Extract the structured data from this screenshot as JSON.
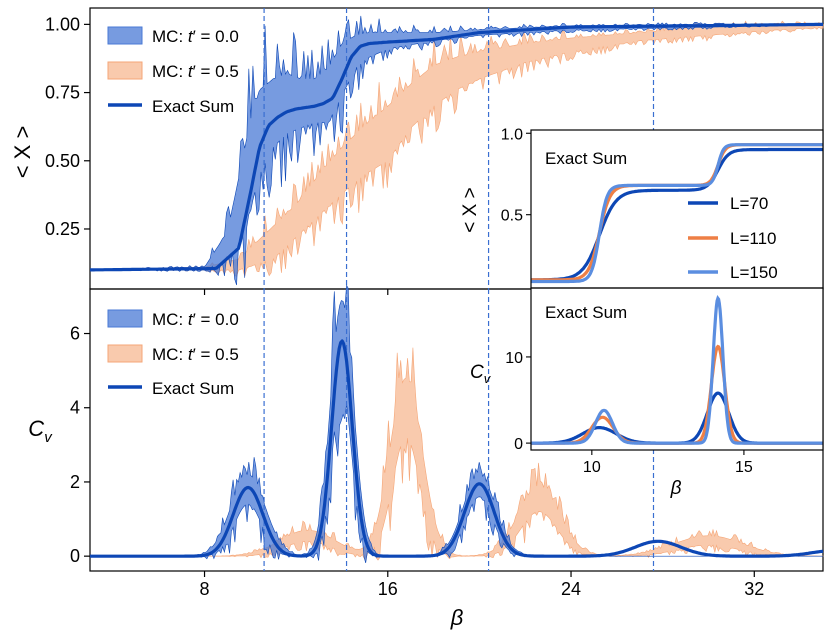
{
  "colors": {
    "exact": "#0d47b5",
    "mc0_fill": "#4a79d6",
    "mc05_fill": "#f5a677",
    "dashed": "#3a6fd1",
    "inset_L70": "#0d47b5",
    "inset_L110": "#ee7f45",
    "inset_L150": "#5b8ee0"
  },
  "chart_data": [
    {
      "id": "top",
      "type": "line",
      "ylabel": "< X >",
      "xlabel": "",
      "xlim": [
        3,
        35
      ],
      "ylim": [
        0.03,
        1.06
      ],
      "xticks": [
        8,
        16,
        24,
        32
      ],
      "yticks": [
        "0.25",
        "0.50",
        "0.75",
        "1.00"
      ],
      "ytick_values": [
        0.25,
        0.5,
        0.75,
        1.0
      ],
      "vlines": [
        10.6,
        14.2,
        20.4,
        27.6
      ],
      "legend": [
        "MC: t′ = 0.0",
        "MC: t′ = 0.5",
        "Exact Sum"
      ],
      "series": [
        {
          "name": "Exact Sum",
          "x": [
            3,
            8.5,
            9.5,
            10.0,
            10.4,
            10.8,
            11.2,
            11.6,
            12.0,
            12.8,
            13.2,
            13.6,
            14.0,
            14.4,
            14.8,
            15.2,
            16,
            18,
            20,
            24,
            35
          ],
          "y": [
            0.1,
            0.105,
            0.18,
            0.38,
            0.55,
            0.63,
            0.66,
            0.68,
            0.69,
            0.7,
            0.71,
            0.73,
            0.8,
            0.88,
            0.92,
            0.93,
            0.935,
            0.945,
            0.97,
            0.99,
            1.0
          ]
        },
        {
          "name": "MC: t′ = 0.0",
          "x": [
            3,
            8,
            9,
            9.6,
            10,
            10.4,
            11,
            11.6,
            12.2,
            12.8,
            13.4,
            14,
            14.6,
            15.2,
            16,
            18,
            20,
            24,
            30,
            35
          ],
          "lower": [
            0.1,
            0.1,
            0.14,
            0.22,
            0.32,
            0.45,
            0.55,
            0.6,
            0.62,
            0.64,
            0.64,
            0.74,
            0.84,
            0.88,
            0.91,
            0.94,
            0.96,
            0.98,
            0.99,
            1.0
          ],
          "upper": [
            0.1,
            0.11,
            0.24,
            0.48,
            0.65,
            0.76,
            0.8,
            0.82,
            0.8,
            0.8,
            0.84,
            0.93,
            0.96,
            0.97,
            0.97,
            0.97,
            0.98,
            0.995,
            1.0,
            1.0
          ]
        },
        {
          "name": "MC: t′ = 0.5",
          "x": [
            3,
            8,
            9.5,
            11,
            12,
            13,
            14,
            15,
            16,
            17,
            18,
            19,
            20,
            22,
            24,
            27,
            30,
            33,
            35
          ],
          "lower": [
            0.1,
            0.1,
            0.1,
            0.14,
            0.22,
            0.3,
            0.38,
            0.45,
            0.5,
            0.62,
            0.7,
            0.76,
            0.8,
            0.86,
            0.9,
            0.94,
            0.96,
            0.98,
            0.99
          ],
          "upper": [
            0.1,
            0.11,
            0.14,
            0.26,
            0.34,
            0.45,
            0.55,
            0.63,
            0.7,
            0.78,
            0.85,
            0.88,
            0.9,
            0.93,
            0.95,
            0.97,
            0.99,
            1.0,
            1.0
          ]
        }
      ]
    },
    {
      "id": "bottom",
      "type": "line",
      "ylabel": "C_v",
      "xlabel": "β",
      "xlim": [
        3,
        35
      ],
      "ylim": [
        -0.4,
        7.2
      ],
      "xticks": [
        8,
        16,
        24,
        32
      ],
      "yticks": [
        "0",
        "2",
        "4",
        "6"
      ],
      "ytick_values": [
        0,
        2,
        4,
        6
      ],
      "vlines": [
        10.6,
        14.2,
        20.4,
        27.6
      ],
      "legend": [
        "MC: t′ = 0.0",
        "MC: t′ = 0.5",
        "Exact Sum"
      ],
      "series": [
        {
          "name": "Exact Sum",
          "peaks": [
            [
              9.9,
              1.85,
              0.65
            ],
            [
              14.0,
              5.8,
              0.45
            ],
            [
              20.0,
              1.95,
              0.65
            ],
            [
              27.8,
              0.4,
              1.0
            ],
            [
              35.5,
              0.15,
              1.0
            ]
          ]
        },
        {
          "name": "MC: t′ = 0.0",
          "peaks_lower": [
            [
              9.9,
              1.4,
              0.6
            ],
            [
              14.0,
              4.6,
              0.42
            ],
            [
              20.0,
              1.6,
              0.6
            ]
          ],
          "peaks_upper": [
            [
              9.9,
              2.2,
              0.75
            ],
            [
              14.0,
              6.9,
              0.5
            ],
            [
              20.0,
              2.2,
              0.7
            ]
          ]
        },
        {
          "name": "MC: t′ = 0.5",
          "peaks_lower": [
            [
              12.5,
              0.4,
              1.0
            ],
            [
              16.8,
              3.2,
              0.6
            ],
            [
              22.6,
              1.2,
              0.8
            ],
            [
              30.0,
              0.3,
              1.3
            ]
          ],
          "peaks_upper": [
            [
              12.5,
              0.7,
              1.2
            ],
            [
              16.8,
              4.8,
              0.7
            ],
            [
              22.6,
              1.9,
              0.9
            ],
            [
              30.0,
              0.55,
              1.5
            ]
          ]
        }
      ]
    },
    {
      "id": "inset_top",
      "type": "line",
      "title": "Exact Sum",
      "ylabel": "< X >",
      "xlim": [
        8,
        17.6
      ],
      "ylim": [
        0.05,
        1.02
      ],
      "yticks": [
        "0.5",
        "1.0"
      ],
      "ytick_values": [
        0.5,
        1.0
      ],
      "legend": [
        "L=70",
        "L=110",
        "L=150"
      ],
      "series": [
        {
          "name": "L=70",
          "steps": [
            [
              10.25,
              0.55,
              0.55
            ],
            [
              14.15,
              0.25,
              0.35
            ]
          ],
          "base": 0.1
        },
        {
          "name": "L=110",
          "steps": [
            [
              10.25,
              0.58,
              0.35
            ],
            [
              14.15,
              0.25,
              0.24
            ]
          ],
          "base": 0.1
        },
        {
          "name": "L=150",
          "steps": [
            [
              10.25,
              0.59,
              0.25
            ],
            [
              14.15,
              0.25,
              0.18
            ]
          ],
          "base": 0.09
        }
      ]
    },
    {
      "id": "inset_bottom",
      "type": "line",
      "title": "Exact Sum",
      "ylabel": "C_v",
      "xlabel": "β",
      "xlim": [
        8,
        17.6
      ],
      "ylim": [
        -0.8,
        18
      ],
      "xticks": [
        10,
        15
      ],
      "yticks": [
        "0",
        "10"
      ],
      "ytick_values": [
        0,
        10
      ],
      "series": [
        {
          "name": "L=70",
          "peaks": [
            [
              10.25,
              1.8,
              0.55
            ],
            [
              14.15,
              5.8,
              0.35
            ]
          ]
        },
        {
          "name": "L=110",
          "peaks": [
            [
              10.35,
              3.0,
              0.35
            ],
            [
              14.15,
              11.2,
              0.22
            ]
          ]
        },
        {
          "name": "L=150",
          "peaks": [
            [
              10.4,
              3.8,
              0.28
            ],
            [
              14.15,
              16.8,
              0.16
            ]
          ]
        }
      ]
    }
  ],
  "labels": {
    "top_ylabel": "< X >",
    "bottom_ylabel_main": "C",
    "bottom_ylabel_sub": "v",
    "xlabel": "β",
    "legend_mc0_prefix": "MC: ",
    "legend_mc0_t": "t",
    "legend_mc0_suffix": "′ = 0.0",
    "legend_mc05_prefix": "MC: ",
    "legend_mc05_t": "t",
    "legend_mc05_suffix": "′ = 0.5",
    "legend_exact": "Exact Sum",
    "inset_top_title": "Exact Sum",
    "inset_bottom_title": "Exact Sum",
    "inset_ylabel_top": "< X >",
    "inset_ylabel_bottom_main": "C",
    "inset_ylabel_bottom_sub": "v",
    "inset_xlabel": "β",
    "inset_leg_L70": "L=70",
    "inset_leg_L110": "L=110",
    "inset_leg_L150": "L=150"
  }
}
